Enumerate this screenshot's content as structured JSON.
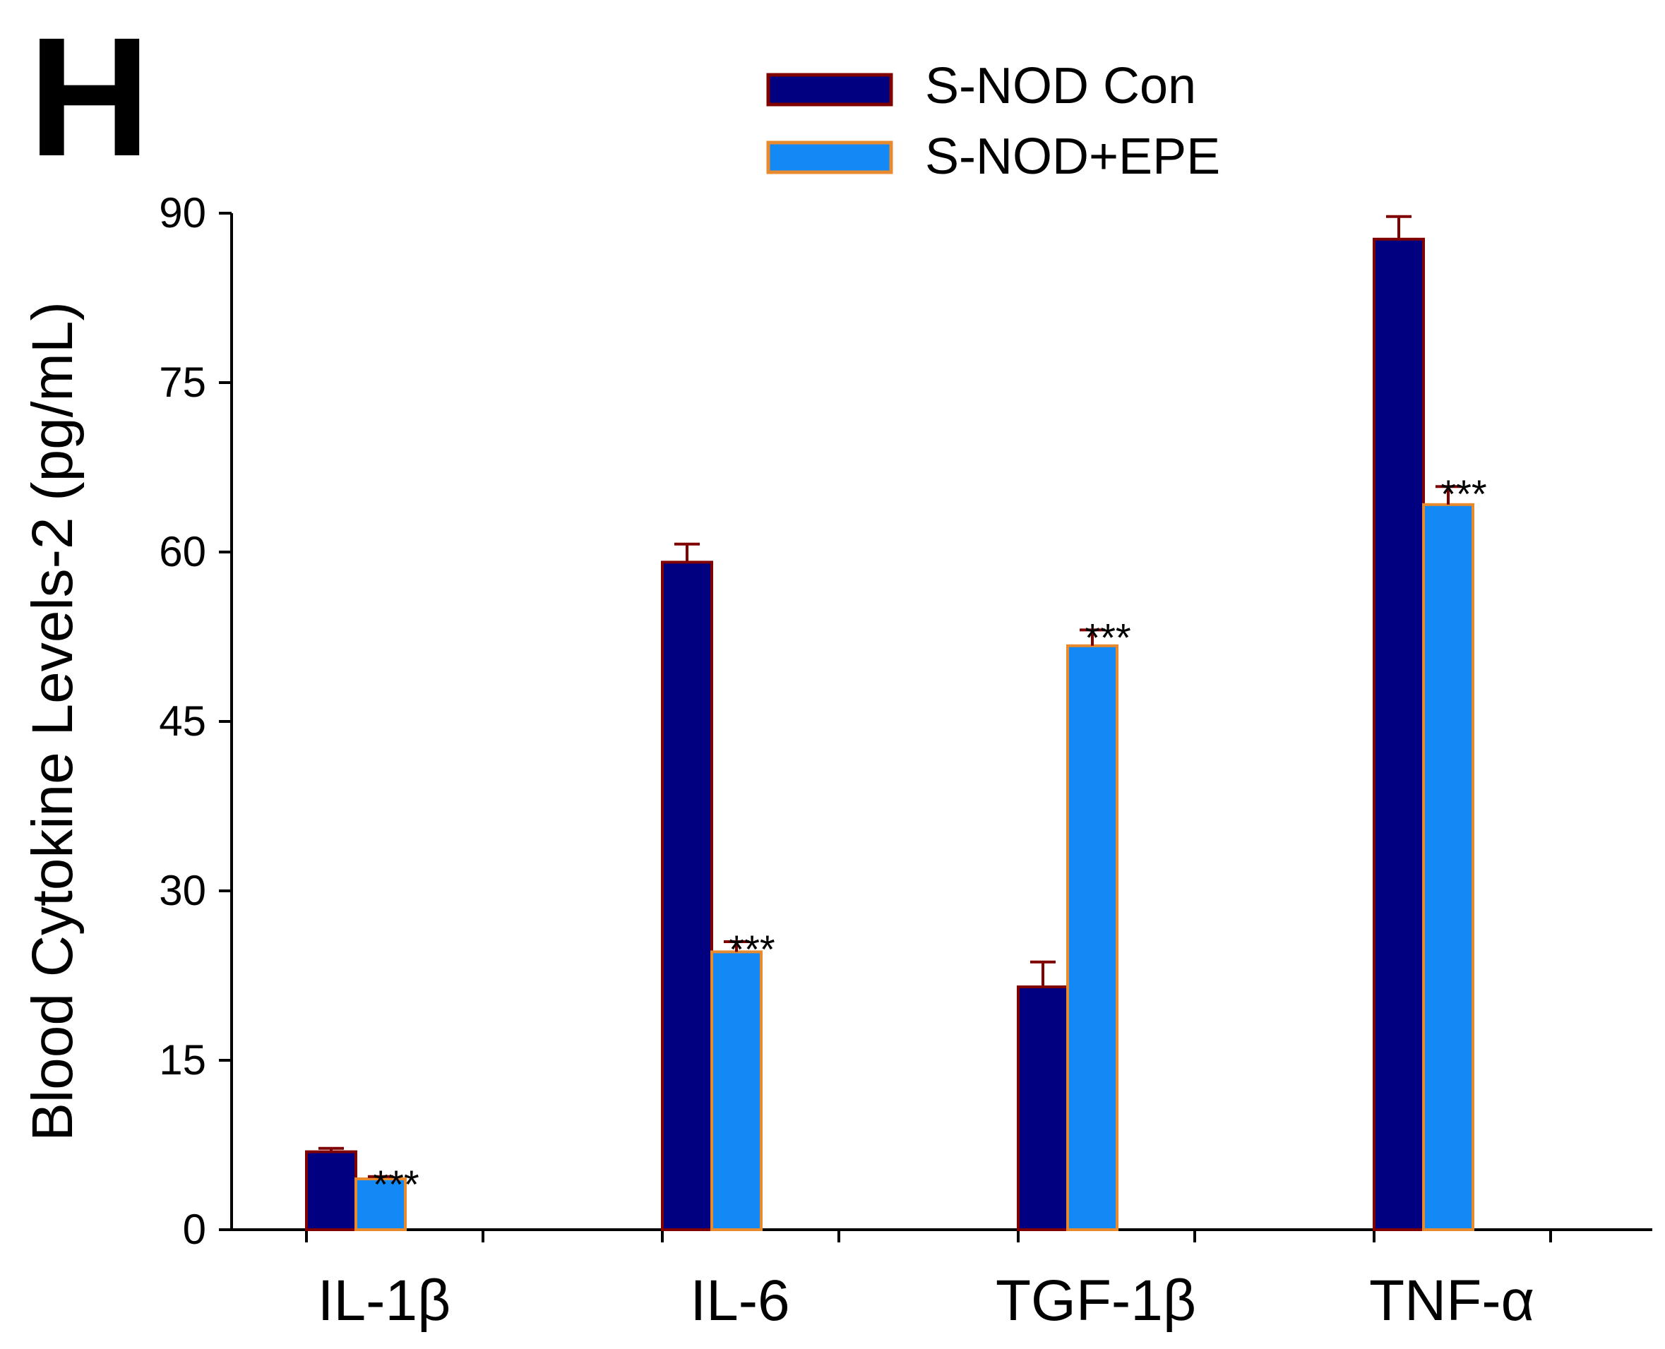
{
  "panel_letter": "H",
  "chart_data": {
    "type": "bar",
    "title": "",
    "xlabel": "",
    "ylabel": "Blood Cytokine Levels-2 (pg/mL)",
    "ylim": [
      0,
      90
    ],
    "yticks": [
      "0",
      "15",
      "30",
      "45",
      "60",
      "75",
      "90"
    ],
    "categories": [
      "IL-1β",
      "IL-6",
      "TGF-1β",
      "TNF-α"
    ],
    "legend_position": "top-center",
    "series": [
      {
        "name": "S-NOD Con",
        "values": [
          6.9,
          59.1,
          21.5,
          87.7
        ],
        "errors": [
          0.3,
          1.6,
          2.2,
          2.0
        ],
        "fill": "#000080",
        "stroke": "#800000",
        "annotations": [
          "",
          "",
          "",
          ""
        ]
      },
      {
        "name": "S-NOD+EPE",
        "values": [
          4.5,
          24.6,
          51.7,
          64.2
        ],
        "errors": [
          0.2,
          0.9,
          1.4,
          1.6
        ],
        "fill": "#1289f5",
        "stroke": "#e88a2e",
        "annotations": [
          "***",
          "***",
          "***",
          "***"
        ]
      }
    ],
    "errorbar_color": "#800000",
    "axis_color": "#000000"
  }
}
